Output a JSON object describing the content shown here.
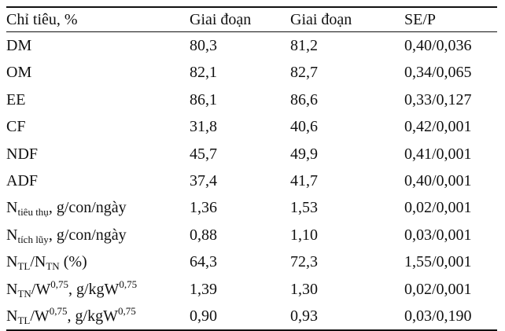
{
  "table": {
    "headers": [
      "Chỉ tiêu, %",
      "Giai đoạn",
      "Giai đoạn",
      "SE/P"
    ],
    "rows": [
      {
        "label": "DM",
        "v1": "80,3",
        "v2": "81,2",
        "sep": "0,40/0,036"
      },
      {
        "label": "OM",
        "v1": "82,1",
        "v2": "82,7",
        "sep": "0,34/0,065"
      },
      {
        "label": "EE",
        "v1": "86,1",
        "v2": "86,6",
        "sep": "0,33/0,127"
      },
      {
        "label": "CF",
        "v1": "31,8",
        "v2": "40,6",
        "sep": "0,42/0,001"
      },
      {
        "label": "NDF",
        "v1": "45,7",
        "v2": "49,9",
        "sep": "0,41/0,001"
      },
      {
        "label": "ADF",
        "v1": "37,4",
        "v2": "41,7",
        "sep": "0,40/0,001"
      },
      {
        "label_parts": {
          "base": "N",
          "sub": "tiêu thụ",
          "rest": ", g/con/ngày"
        },
        "v1": "1,36",
        "v2": "1,53",
        "sep": "0,02/0,001"
      },
      {
        "label_parts": {
          "base": "N",
          "sub": "tích lũy",
          "rest": ", g/con/ngày"
        },
        "v1": "0,88",
        "v2": "1,10",
        "sep": "0,03/0,001"
      },
      {
        "label_parts": {
          "a": "N",
          "a_sub": "TL",
          "slash": "/N",
          "b_sub": "TN",
          "rest": " (%)"
        },
        "v1": "64,3",
        "v2": "72,3",
        "sep": "1,55/0,001"
      },
      {
        "label_parts": {
          "a": "N",
          "a_sub": "TN",
          "mid": "/W",
          "sup1": "0,75",
          "rest": ", g/kgW",
          "sup2": "0,75"
        },
        "v1": "1,39",
        "v2": "1,30",
        "sep": "0,02/0,001"
      },
      {
        "label_parts": {
          "a": "N",
          "a_sub": "TL",
          "mid": "/W",
          "sup1": "0,75",
          "rest": ", g/kgW",
          "sup2": "0,75"
        },
        "v1": "0,90",
        "v2": "0,93",
        "sep": "0,03/0,190"
      }
    ]
  }
}
